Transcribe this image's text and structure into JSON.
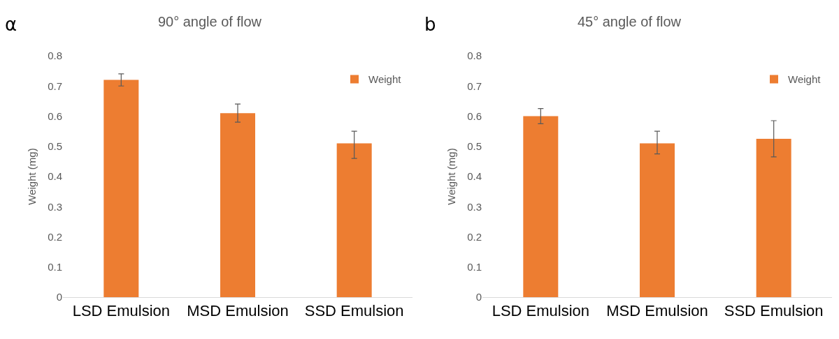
{
  "chart_data": [
    {
      "type": "bar",
      "title": "90° angle of flow",
      "ylabel": "Weight (mg)",
      "annotations": [
        "α"
      ],
      "categories": [
        "LSD Emulsion",
        "MSD Emulsion",
        "SSD Emulsion"
      ],
      "series": [
        {
          "name": "Weight",
          "color": "#ed7d31",
          "values": [
            0.72,
            0.61,
            0.51
          ],
          "errors": [
            0.02,
            0.03,
            [
              0.46,
              0.55
            ]
          ]
        }
      ],
      "ylim": [
        0,
        0.8
      ],
      "yticks": [
        0,
        0.1,
        0.2,
        0.3,
        0.4,
        0.5,
        0.6,
        0.7,
        0.8
      ],
      "grid": false,
      "legend": "top right"
    },
    {
      "type": "bar",
      "title": "45° angle of flow",
      "ylabel": "Weight (mg)",
      "annotations": [
        "b"
      ],
      "categories": [
        "LSD Emulsion",
        "MSD Emulsion",
        "SSD Emulsion"
      ],
      "series": [
        {
          "name": "Weight",
          "color": "#ed7d31",
          "values": [
            0.6,
            0.51,
            0.525
          ],
          "errors": [
            [
              0.575,
              0.625
            ],
            [
              0.475,
              0.55
            ],
            [
              0.465,
              0.585
            ]
          ]
        }
      ],
      "ylim": [
        0,
        0.8
      ],
      "yticks": [
        0,
        0.1,
        0.2,
        0.3,
        0.4,
        0.5,
        0.6,
        0.7,
        0.8
      ],
      "grid": false,
      "legend": "top right"
    }
  ]
}
